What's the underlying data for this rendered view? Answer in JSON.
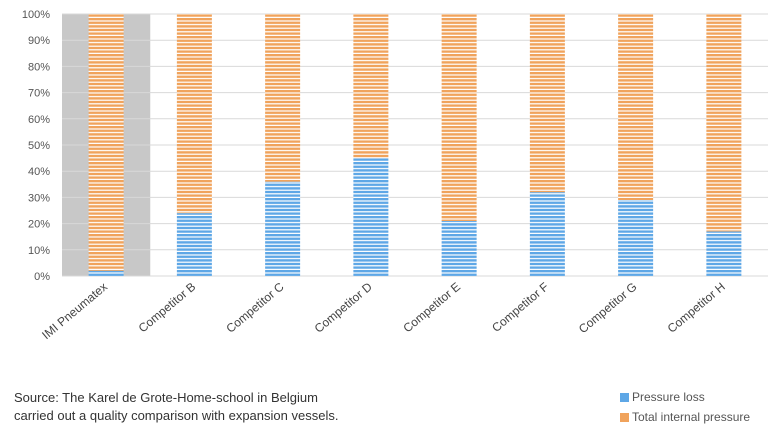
{
  "chart_data": {
    "type": "bar",
    "stacked": true,
    "normalized_percent": true,
    "categories": [
      "IMI Pneumatex",
      "Competitor B",
      "Competitor C",
      "Competitor D",
      "Competitor E",
      "Competitor F",
      "Competitor G",
      "Competitor H"
    ],
    "series": [
      {
        "name": "Pressure loss",
        "color": "#5ea7e6",
        "values": [
          2,
          24,
          36,
          45,
          21,
          32,
          29,
          17
        ]
      },
      {
        "name": "Total internal pressure",
        "color": "#f0a35c",
        "values": [
          98,
          76,
          64,
          55,
          79,
          68,
          71,
          83
        ]
      }
    ],
    "y_ticks": [
      "0%",
      "10%",
      "20%",
      "30%",
      "40%",
      "50%",
      "60%",
      "70%",
      "80%",
      "90%",
      "100%"
    ],
    "ylim": [
      0,
      100
    ],
    "grid": true,
    "highlighted_category": "IMI Pneumatex",
    "highlight_color": "#c8c8c8",
    "legend_position": "bottom-right"
  },
  "source_note": {
    "line1": "Source: The Karel de Grote-Home-school in Belgium",
    "line2": "carried out a quality comparison with expansion vessels."
  }
}
